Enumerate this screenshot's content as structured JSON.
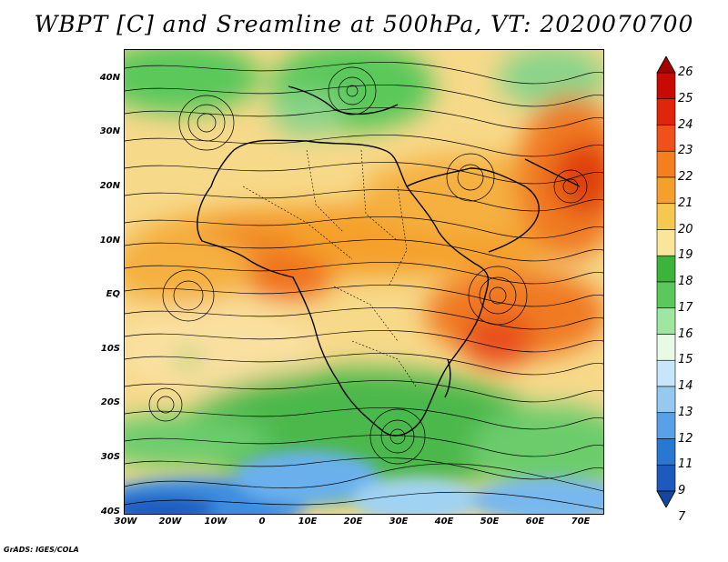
{
  "title": "WBPT [C] and Sreamline at 500hPa, VT: 2020070700",
  "footer": "GrADS: IGES/COLA",
  "lat_labels": [
    "40N",
    "30N",
    "20N",
    "10N",
    "EQ",
    "10S",
    "20S",
    "30S",
    "40S"
  ],
  "lon_labels": [
    "30W",
    "20W",
    "10W",
    "0",
    "10E",
    "20E",
    "30E",
    "40E",
    "50E",
    "60E",
    "70E"
  ],
  "colorbar": {
    "labels": [
      "26",
      "25",
      "24",
      "23",
      "22",
      "21",
      "20",
      "19",
      "18",
      "17",
      "16",
      "15",
      "14",
      "13",
      "12",
      "11",
      "9",
      "7"
    ],
    "colors": [
      "#a50000",
      "#c80a00",
      "#e0260a",
      "#f0501a",
      "#f57e1e",
      "#f5a02c",
      "#f5c850",
      "#fae69a",
      "#3cb43c",
      "#5ac85a",
      "#a0e6a0",
      "#e6fae6",
      "#c8e6fa",
      "#96c8f0",
      "#5aa0e6",
      "#2878d2",
      "#1e5abe",
      "#1446a0"
    ]
  },
  "map": {
    "region": "Africa and Atlantic/Indian Ocean, 40S-45N, 30W-75E",
    "fields": [
      "wet-bulb potential temperature shading",
      "streamlines"
    ]
  }
}
